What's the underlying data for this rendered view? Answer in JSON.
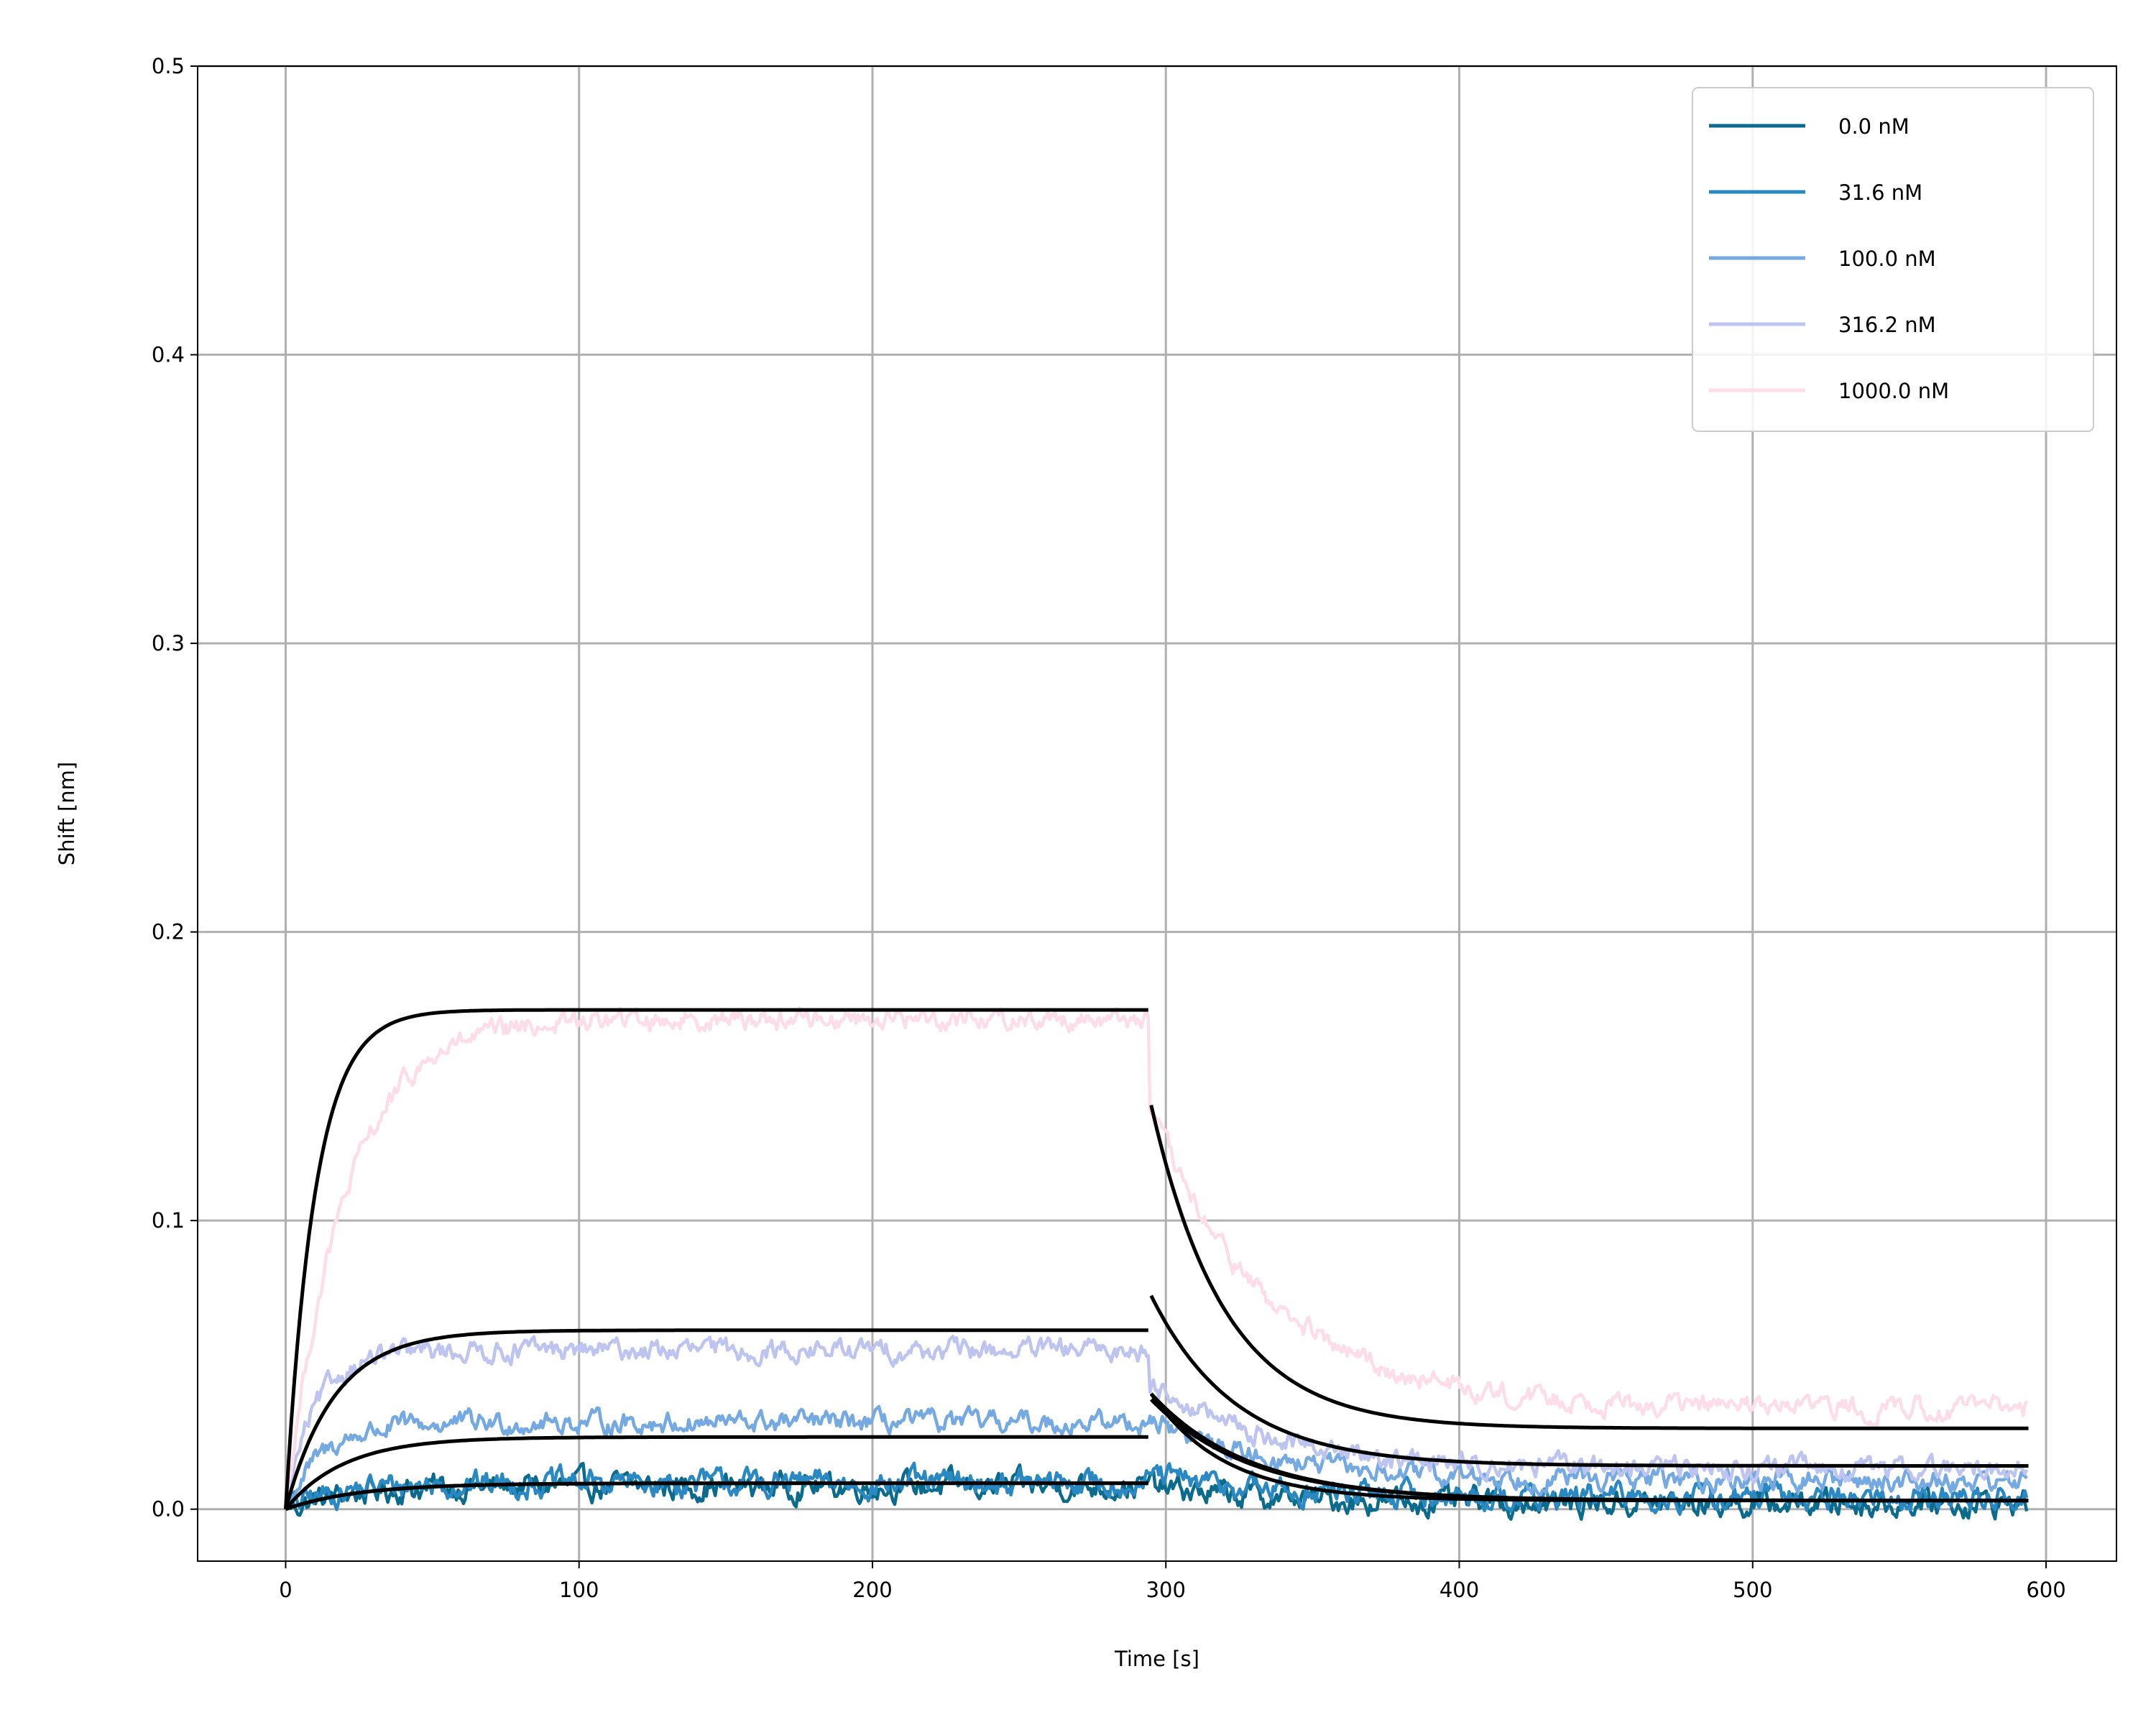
{
  "chart_data": {
    "type": "line",
    "title": "",
    "xlabel": "Time [s]",
    "ylabel": "Shift [nm]",
    "xlim": [
      -30,
      624
    ],
    "ylim": [
      -0.018,
      0.5
    ],
    "xticks": [
      0,
      100,
      200,
      300,
      400,
      500,
      600
    ],
    "yticks": [
      0.0,
      0.1,
      0.2,
      0.3,
      0.4,
      0.5
    ],
    "xtick_labels": [
      "0",
      "100",
      "200",
      "300",
      "400",
      "500",
      "600"
    ],
    "ytick_labels": [
      "0.0",
      "0.1",
      "0.2",
      "0.3",
      "0.4",
      "0.5"
    ],
    "grid": true,
    "legend_position": "top-right",
    "association_end": 294,
    "dissociation_end": 594,
    "series": [
      {
        "name": "0.0 nM",
        "color": "#0b6b8c",
        "assoc_plateau": 0.008,
        "assoc_rate": 0.05,
        "dissoc_start": 0.008,
        "dissoc_end": 0.002,
        "noise": 0.006
      },
      {
        "name": "31.6 nM",
        "color": "#2a88c2",
        "assoc_plateau": 0.009,
        "assoc_rate": 0.06,
        "dissoc_start": 0.012,
        "dissoc_end": 0.004,
        "noise": 0.006
      },
      {
        "name": "100.0 nM",
        "color": "#74a9e2",
        "assoc_plateau": 0.03,
        "assoc_rate": 0.08,
        "dissoc_start": 0.032,
        "dissoc_end": 0.01,
        "noise": 0.005
      },
      {
        "name": "316.2 nM",
        "color": "#bdc4ef",
        "assoc_plateau": 0.055,
        "assoc_rate": 0.1,
        "dissoc_start": 0.045,
        "dissoc_end": 0.014,
        "noise": 0.005
      },
      {
        "name": "1000.0 nM",
        "color": "#fcdde9",
        "assoc_plateau": 0.17,
        "assoc_rate": 0.05,
        "dissoc_start": 0.14,
        "dissoc_end": 0.035,
        "noise": 0.005
      }
    ],
    "fits": [
      {
        "plateau": 0.009,
        "rate": 0.04,
        "dissoc_start": 0.04,
        "dissoc_end": 0.003,
        "dissoc_rate": 0.03
      },
      {
        "plateau": 0.009,
        "rate": 0.04,
        "dissoc_start": 0.038,
        "dissoc_end": 0.003,
        "dissoc_rate": 0.03
      },
      {
        "plateau": 0.025,
        "rate": 0.05,
        "dissoc_start": 0.04,
        "dissoc_end": 0.003,
        "dissoc_rate": 0.04
      },
      {
        "plateau": 0.062,
        "rate": 0.06,
        "dissoc_start": 0.074,
        "dissoc_end": 0.015,
        "dissoc_rate": 0.035
      },
      {
        "plateau": 0.173,
        "rate": 0.1,
        "dissoc_start": 0.14,
        "dissoc_end": 0.028,
        "dissoc_rate": 0.04
      }
    ],
    "fit_color": "#000000"
  }
}
